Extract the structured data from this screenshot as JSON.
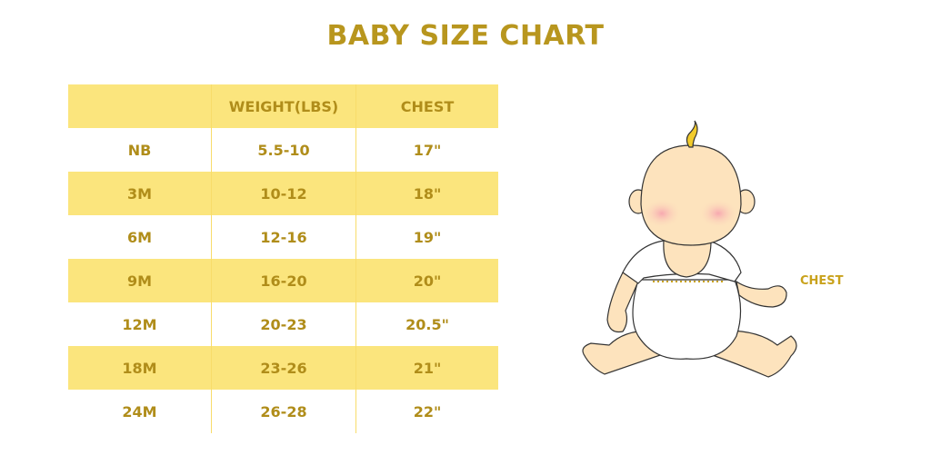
{
  "title": "BABY SIZE CHART",
  "table": {
    "headers": [
      "",
      "WEIGHT(LBS)",
      "CHEST"
    ],
    "rows": [
      [
        "NB",
        "5.5-10",
        "17\""
      ],
      [
        "3M",
        "10-12",
        "18\""
      ],
      [
        "6M",
        "12-16",
        "19\""
      ],
      [
        "9M",
        "16-20",
        "20\""
      ],
      [
        "12M",
        "20-23",
        "20.5\""
      ],
      [
        "18M",
        "23-26",
        "21\""
      ],
      [
        "24M",
        "26-28",
        "22\""
      ]
    ]
  },
  "illustration": {
    "chest_label": "CHEST"
  },
  "colors": {
    "accent": "#B8961E",
    "row_highlight": "#FBE57D",
    "skin": "#FDE3BD"
  }
}
